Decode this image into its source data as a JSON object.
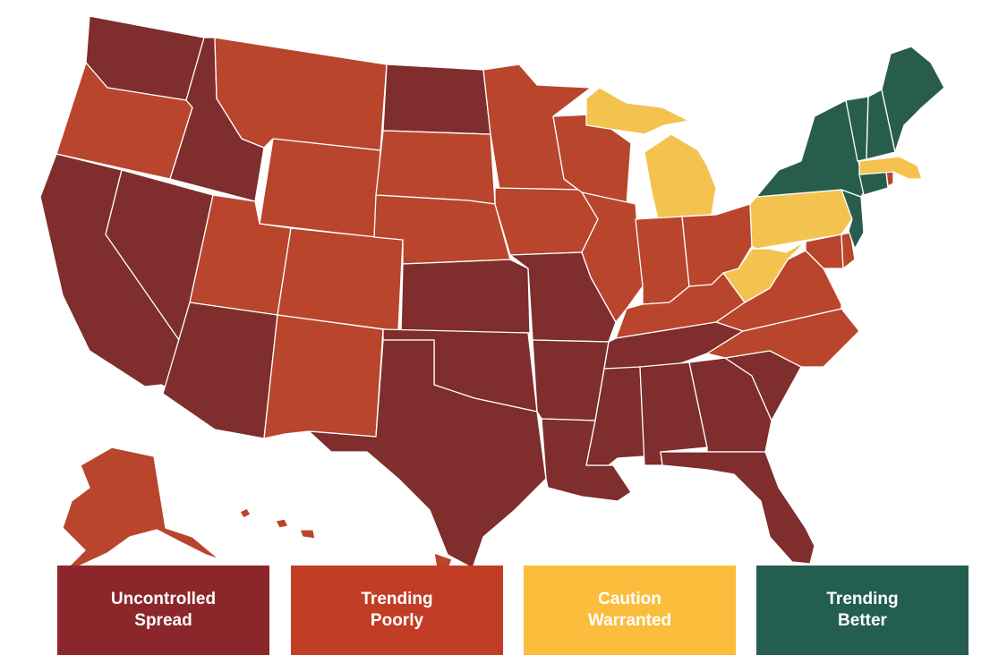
{
  "colors": {
    "uncontrolled": "#7f2d2d",
    "trending_poorly": "#b8452c",
    "caution": "#f4c24e",
    "trending_better": "#285d4e",
    "border": "#ffffff",
    "legend_uncontrolled": "#8b272b",
    "legend_trending_poorly": "#c23d25",
    "legend_caution": "#fbbd3c",
    "legend_trending_better": "#245e51"
  },
  "legend": [
    {
      "key": "uncontrolled",
      "label": "Uncontrolled\nSpread"
    },
    {
      "key": "trending_poorly",
      "label": "Trending\nPoorly"
    },
    {
      "key": "caution",
      "label": "Caution\nWarranted"
    },
    {
      "key": "trending_better",
      "label": "Trending\nBetter"
    }
  ],
  "states": {
    "WA": "uncontrolled",
    "OR": "trending_poorly",
    "CA": "uncontrolled",
    "ID": "uncontrolled",
    "NV": "uncontrolled",
    "MT": "trending_poorly",
    "WY": "trending_poorly",
    "UT": "trending_poorly",
    "AZ": "uncontrolled",
    "CO": "trending_poorly",
    "NM": "trending_poorly",
    "ND": "uncontrolled",
    "SD": "trending_poorly",
    "NE": "trending_poorly",
    "KS": "uncontrolled",
    "OK": "uncontrolled",
    "TX": "uncontrolled",
    "MN": "trending_poorly",
    "IA": "trending_poorly",
    "MO": "uncontrolled",
    "AR": "uncontrolled",
    "LA": "uncontrolled",
    "WI": "trending_poorly",
    "IL": "trending_poorly",
    "MI": "caution",
    "IN": "trending_poorly",
    "OH": "trending_poorly",
    "KY": "trending_poorly",
    "TN": "uncontrolled",
    "MS": "uncontrolled",
    "AL": "uncontrolled",
    "GA": "uncontrolled",
    "FL": "uncontrolled",
    "SC": "uncontrolled",
    "NC": "trending_poorly",
    "VA": "trending_poorly",
    "WV": "caution",
    "PA": "caution",
    "MD": "trending_poorly",
    "DE": "trending_poorly",
    "NJ": "trending_better",
    "NY": "trending_better",
    "CT": "trending_better",
    "RI": "trending_poorly",
    "MA": "caution",
    "VT": "trending_better",
    "NH": "trending_better",
    "ME": "trending_better",
    "AK": "trending_poorly",
    "HI": "trending_poorly"
  }
}
